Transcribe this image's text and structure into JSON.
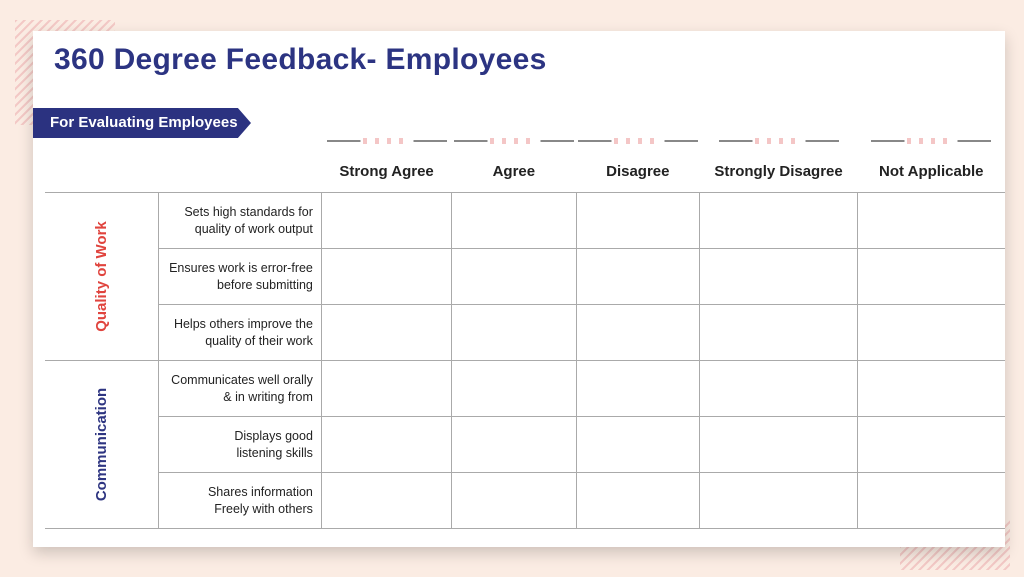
{
  "title": "360 Degree Feedback- Employees",
  "banner": "For Evaluating Employees",
  "columns": [
    "Strong Agree",
    "Agree",
    "Disagree",
    "Strongly Disagree",
    "Not Applicable"
  ],
  "categories": [
    {
      "name": "Quality of Work",
      "color": "#e0443e",
      "items": [
        "Sets high standards for|quality of work output",
        "Ensures work is error-free|before submitting",
        "Helps others improve the|quality of their work"
      ]
    },
    {
      "name": "Communication",
      "color": "#2e3581",
      "items": [
        "Communicates well orally|& in writing from",
        "Displays good|listening skills",
        "Shares information|Freely with others"
      ]
    }
  ]
}
